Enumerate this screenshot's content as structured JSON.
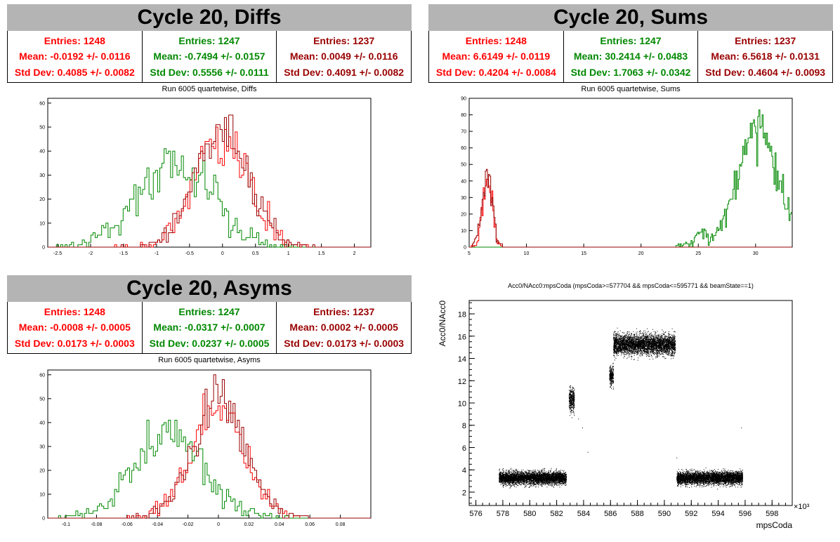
{
  "colors": {
    "red": "#ff0000",
    "green": "#008800",
    "darkred": "#990000",
    "black": "#000000"
  },
  "panels": {
    "diffs": {
      "banner": "Cycle 20, Diffs",
      "stats": [
        {
          "entries": "Entries: 1248",
          "mean": "Mean: -0.0192 +/- 0.0116",
          "std": "Std Dev: 0.4085 +/- 0.0082",
          "color": "#ff0000"
        },
        {
          "entries": "Entries: 1247",
          "mean": "Mean: -0.7494 +/- 0.0157",
          "std": "Std Dev: 0.5556 +/- 0.0111",
          "color": "#008800"
        },
        {
          "entries": "Entries: 1237",
          "mean": "Mean: 0.0049 +/- 0.0116",
          "std": "Std Dev: 0.4091 +/- 0.0082",
          "color": "#990000"
        }
      ]
    },
    "sums": {
      "banner": "Cycle 20, Sums",
      "stats": [
        {
          "entries": "Entries: 1248",
          "mean": "Mean: 6.6149 +/- 0.0119",
          "std": "Std Dev: 0.4204 +/- 0.0084",
          "color": "#ff0000"
        },
        {
          "entries": "Entries: 1247",
          "mean": "Mean: 30.2414 +/- 0.0483",
          "std": "Std Dev: 1.7063 +/- 0.0342",
          "color": "#008800"
        },
        {
          "entries": "Entries: 1237",
          "mean": "Mean: 6.5618 +/- 0.0131",
          "std": "Std Dev: 0.4604 +/- 0.0093",
          "color": "#990000"
        }
      ]
    },
    "asyms": {
      "banner": "Cycle 20, Asyms",
      "stats": [
        {
          "entries": "Entries: 1248",
          "mean": "Mean: -0.0008 +/- 0.0005",
          "std": "Std Dev: 0.0173 +/- 0.0003",
          "color": "#ff0000"
        },
        {
          "entries": "Entries: 1247",
          "mean": "Mean: -0.0317 +/- 0.0007",
          "std": "Std Dev: 0.0237 +/- 0.0005",
          "color": "#008800"
        },
        {
          "entries": "Entries: 1237",
          "mean": "Mean: 0.0002 +/- 0.0005",
          "std": "Std Dev: 0.0173 +/- 0.0003",
          "color": "#990000"
        }
      ]
    }
  },
  "chart_data": [
    {
      "type": "histogram",
      "title": "Run 6005 quartetwise, Diffs",
      "xlim": [
        -2.65,
        2.25
      ],
      "ylim": [
        0,
        62
      ],
      "xticks": [
        -2.5,
        -2,
        -1.5,
        -1,
        -0.5,
        0,
        0.5,
        1,
        1.5,
        2
      ],
      "xtick_labels": [
        "-2.5",
        "-2",
        "-1.5",
        "-1",
        "-0.5",
        "0",
        "0.5",
        "1",
        "1.5",
        "2"
      ],
      "yticks": [
        0,
        10,
        20,
        30,
        40,
        50,
        60
      ],
      "ytick_labels": [
        "0",
        "10",
        "20",
        "30",
        "40",
        "50",
        "60"
      ],
      "series": [
        {
          "color": "#ff0000",
          "mean": -0.019,
          "std": 0.409,
          "peak": 57
        },
        {
          "color": "#008800",
          "mean": -0.749,
          "std": 0.556,
          "peak": 44
        },
        {
          "color": "#990000",
          "mean": 0.005,
          "std": 0.409,
          "peak": 60
        }
      ]
    },
    {
      "type": "histogram",
      "title": "Run 6005 quartetwise, Sums",
      "xlim": [
        5,
        33.2
      ],
      "ylim": [
        0,
        90
      ],
      "xticks": [
        5,
        10,
        15,
        20,
        25,
        30
      ],
      "xtick_labels": [
        "5",
        "10",
        "15",
        "20",
        "25",
        "30"
      ],
      "yticks": [
        0,
        10,
        20,
        30,
        40,
        50,
        60,
        70,
        80,
        90
      ],
      "ytick_labels": [
        "0",
        "10",
        "20",
        "30",
        "40",
        "50",
        "60",
        "70",
        "80",
        "90"
      ],
      "series": [
        {
          "color": "#ff0000",
          "mean": 6.615,
          "std": 0.42,
          "peak": 49
        },
        {
          "color": "#008800",
          "mean": 30.24,
          "std": 1.706,
          "peak": 86
        },
        {
          "color": "#990000",
          "mean": 6.562,
          "std": 0.46,
          "peak": 47
        }
      ]
    },
    {
      "type": "histogram",
      "title": "Run 6005 quartetwise, Asyms",
      "xlim": [
        -0.112,
        0.1
      ],
      "ylim": [
        0,
        62
      ],
      "xticks": [
        -0.1,
        -0.08,
        -0.06,
        -0.04,
        -0.02,
        0,
        0.02,
        0.04,
        0.06,
        0.08
      ],
      "xtick_labels": [
        "-0.1",
        "-0.08",
        "-0.06",
        "-0.04",
        "-0.02",
        "0",
        "0.02",
        "0.04",
        "0.06",
        "0.08"
      ],
      "yticks": [
        0,
        10,
        20,
        30,
        40,
        50,
        60
      ],
      "ytick_labels": [
        "0",
        "10",
        "20",
        "30",
        "40",
        "50",
        "60"
      ],
      "series": [
        {
          "color": "#ff0000",
          "mean": -0.0008,
          "std": 0.0173,
          "peak": 57
        },
        {
          "color": "#008800",
          "mean": -0.0317,
          "std": 0.0237,
          "peak": 41
        },
        {
          "color": "#990000",
          "mean": 0.0002,
          "std": 0.0173,
          "peak": 60
        }
      ]
    },
    {
      "type": "scatter",
      "title": "Acc0/NAcc0:mpsCoda (mpsCoda>=577704 && mpsCoda<=595771 && beamState==1)",
      "xlabel": "mpsCoda",
      "ylabel": "Acc0/NAcc0",
      "x_exponent": "×10³",
      "xlim": [
        575.5,
        599.5
      ],
      "ylim": [
        0.8,
        19.2
      ],
      "xticks": [
        576,
        578,
        580,
        582,
        584,
        586,
        588,
        590,
        592,
        594,
        596,
        598
      ],
      "xtick_labels": [
        "576",
        "578",
        "580",
        "582",
        "584",
        "586",
        "588",
        "590",
        "592",
        "594",
        "596",
        "598"
      ],
      "yticks": [
        2,
        4,
        6,
        8,
        10,
        12,
        14,
        16,
        18
      ],
      "ytick_labels": [
        "2",
        "4",
        "6",
        "8",
        "10",
        "12",
        "14",
        "16",
        "18"
      ],
      "clusters": [
        {
          "x": [
            577.7,
            582.7
          ],
          "y_center": 3.3,
          "y_spread": 0.5
        },
        {
          "x": [
            582.9,
            583.3
          ],
          "y_center": 10.3,
          "y_spread": 1.0
        },
        {
          "x": [
            585.9,
            586.2
          ],
          "y_center": 12.5,
          "y_spread": 0.8
        },
        {
          "x": [
            586.2,
            590.8
          ],
          "y_center": 15.3,
          "y_spread": 0.8
        },
        {
          "x": [
            590.9,
            595.8
          ],
          "y_center": 3.3,
          "y_spread": 0.5
        }
      ]
    }
  ]
}
